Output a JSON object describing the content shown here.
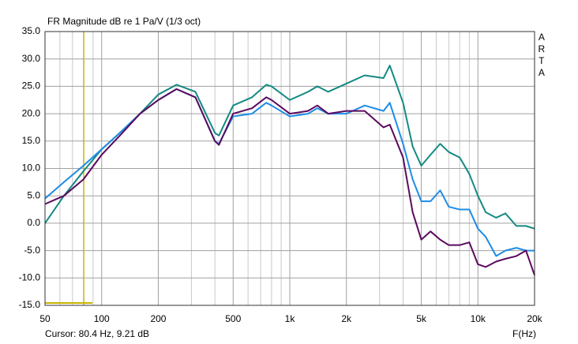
{
  "chart_data": {
    "type": "line",
    "title": "FR Magnitude dB re 1 Pa/V (1/3 oct)",
    "side_label": "ARTA",
    "x_label": "F(Hz)",
    "cursor_label": "Cursor: 80.4 Hz, 9.21 dB",
    "cursor_x": 80.4,
    "xscale": "log",
    "grid": true,
    "xlim": [
      50,
      20000
    ],
    "ylim": [
      -15,
      35
    ],
    "xticks": [
      50,
      100,
      200,
      500,
      {
        "value": 1000,
        "label": "1k"
      },
      {
        "value": 2000,
        "label": "2k"
      },
      {
        "value": 5000,
        "label": "5k"
      },
      {
        "value": 10000,
        "label": "10k"
      },
      {
        "value": 20000,
        "label": "20k"
      }
    ],
    "xminor_ticks": [
      60,
      70,
      80,
      90,
      300,
      400,
      600,
      700,
      800,
      900,
      3000,
      4000,
      6000,
      7000,
      8000,
      9000
    ],
    "yticks": [
      {
        "value": -15,
        "label": "-15.0"
      },
      {
        "value": -10,
        "label": "-10.0"
      },
      {
        "value": -5,
        "label": "-5.0"
      },
      {
        "value": 0,
        "label": "0.0"
      },
      {
        "value": 5,
        "label": "5.0"
      },
      {
        "value": 10,
        "label": "10.0"
      },
      {
        "value": 15,
        "label": "15.0"
      },
      {
        "value": 20,
        "label": "20.0"
      },
      {
        "value": 25,
        "label": "25.0"
      },
      {
        "value": 30,
        "label": "30.0"
      },
      {
        "value": 35,
        "label": "35.0"
      }
    ],
    "x": [
      50,
      63,
      80,
      100,
      125,
      160,
      200,
      250,
      315,
      400,
      420,
      500,
      630,
      750,
      800,
      1000,
      1250,
      1400,
      1600,
      2000,
      2500,
      3150,
      3400,
      4000,
      4500,
      5000,
      5600,
      6300,
      7000,
      8000,
      9000,
      10000,
      11000,
      12500,
      14000,
      16000,
      18000,
      20000
    ],
    "series": [
      {
        "color": "#138a82",
        "values": [
          0,
          5,
          9.5,
          13.5,
          16.5,
          20,
          23.5,
          25.3,
          24,
          16.5,
          16,
          21.5,
          23,
          25.3,
          25,
          22.5,
          24,
          25,
          24,
          25.5,
          27,
          26.5,
          28.8,
          22,
          14,
          10.5,
          12.5,
          14.5,
          13,
          12,
          9,
          5,
          2,
          1,
          1.8,
          -0.5,
          -0.5,
          -1
        ]
      },
      {
        "color": "#1e8ce6",
        "values": [
          4.5,
          7.5,
          10.5,
          13.5,
          16.5,
          20,
          22.5,
          24.5,
          23,
          15,
          14.5,
          19.5,
          20,
          22,
          21.5,
          19.5,
          20,
          21,
          20,
          20,
          21.5,
          20.5,
          22,
          14.5,
          8,
          4,
          4,
          6,
          3,
          2.5,
          2.5,
          -1,
          -2.5,
          -6,
          -5,
          -4.5,
          -5,
          -5
        ]
      },
      {
        "color": "#5a0a5e",
        "values": [
          3.5,
          5,
          8,
          12.5,
          16,
          20,
          22.5,
          24.5,
          23,
          15,
          14.3,
          20,
          21,
          23,
          22.5,
          20,
          20.5,
          21.5,
          20,
          20.5,
          20.5,
          17.5,
          18,
          12,
          2,
          -3,
          -1.5,
          -3,
          -4,
          -4,
          -3.5,
          -7.5,
          -8,
          -7,
          -6.5,
          -6,
          -5,
          -9.5
        ]
      }
    ]
  }
}
